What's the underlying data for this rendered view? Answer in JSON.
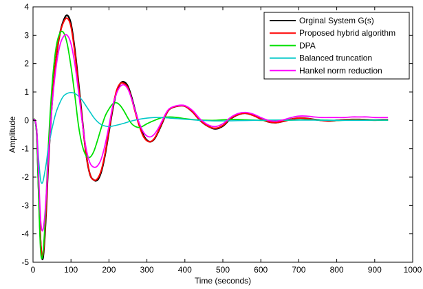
{
  "chart_data": {
    "type": "line",
    "title": "",
    "xlabel": "Time (seconds)",
    "ylabel": "Amplitude",
    "xlim": [
      0,
      1000
    ],
    "ylim": [
      -5,
      4
    ],
    "xticks": [
      0,
      100,
      200,
      300,
      400,
      500,
      600,
      700,
      800,
      900,
      1000
    ],
    "yticks": [
      -5,
      -4,
      -3,
      -2,
      -1,
      0,
      1,
      2,
      3,
      4
    ],
    "grid": false,
    "legend_position": "top-right",
    "series": [
      {
        "name": "Orginal System G(s)",
        "color": "#000000",
        "x": [
          0,
          5,
          10,
          15,
          20,
          25,
          30,
          35,
          40,
          50,
          60,
          70,
          80,
          90,
          100,
          110,
          120,
          130,
          140,
          150,
          160,
          170,
          180,
          190,
          200,
          210,
          220,
          230,
          240,
          250,
          260,
          270,
          280,
          290,
          300,
          310,
          320,
          330,
          340,
          350,
          360,
          380,
          400,
          420,
          440,
          460,
          480,
          500,
          520,
          540,
          560,
          580,
          600,
          620,
          640,
          660,
          680,
          700,
          720,
          740,
          760,
          780,
          800,
          820,
          840,
          860,
          880,
          900,
          920,
          935
        ],
        "y": [
          0,
          0,
          -0.5,
          -2.5,
          -4.3,
          -4.9,
          -4.3,
          -3.1,
          -1.6,
          0.6,
          2.1,
          3.0,
          3.5,
          3.7,
          3.4,
          2.5,
          1.3,
          0,
          -1.2,
          -1.9,
          -2.1,
          -2.1,
          -1.8,
          -1.2,
          -0.4,
          0.4,
          1.0,
          1.3,
          1.35,
          1.2,
          0.8,
          0.3,
          -0.15,
          -0.5,
          -0.7,
          -0.75,
          -0.65,
          -0.4,
          -0.1,
          0.2,
          0.4,
          0.5,
          0.5,
          0.3,
          0.0,
          -0.2,
          -0.3,
          -0.2,
          0.05,
          0.2,
          0.25,
          0.18,
          0.05,
          -0.05,
          -0.08,
          -0.03,
          0.04,
          0.08,
          0.07,
          0.03,
          0.0,
          -0.02,
          0.0,
          0.02,
          0.03,
          0.03,
          0.02,
          0.01,
          0.02,
          0.02
        ]
      },
      {
        "name": "Proposed hybrid algorithm",
        "color": "#ff0000",
        "x": [
          0,
          5,
          10,
          15,
          20,
          25,
          30,
          35,
          40,
          50,
          60,
          70,
          80,
          90,
          100,
          110,
          120,
          130,
          140,
          150,
          160,
          170,
          180,
          190,
          200,
          210,
          220,
          230,
          240,
          250,
          260,
          270,
          280,
          290,
          300,
          310,
          320,
          330,
          340,
          350,
          360,
          380,
          400,
          420,
          440,
          460,
          480,
          500,
          520,
          540,
          560,
          580,
          600,
          620,
          640,
          660,
          680,
          700,
          720,
          740,
          760,
          780,
          800,
          820,
          840,
          860,
          880,
          900,
          920,
          935
        ],
        "y": [
          0,
          0,
          -0.5,
          -2.4,
          -4.2,
          -4.8,
          -4.2,
          -3.0,
          -1.5,
          0.6,
          2.1,
          3.0,
          3.45,
          3.6,
          3.3,
          2.4,
          1.2,
          -0.05,
          -1.2,
          -1.9,
          -2.1,
          -2.05,
          -1.75,
          -1.15,
          -0.35,
          0.45,
          1.05,
          1.3,
          1.3,
          1.15,
          0.75,
          0.25,
          -0.2,
          -0.55,
          -0.72,
          -0.75,
          -0.63,
          -0.38,
          -0.08,
          0.2,
          0.4,
          0.5,
          0.5,
          0.3,
          0.0,
          -0.2,
          -0.28,
          -0.18,
          0.06,
          0.2,
          0.25,
          0.17,
          0.05,
          -0.05,
          -0.08,
          -0.03,
          0.04,
          0.08,
          0.07,
          0.03,
          0.0,
          -0.02,
          0.0,
          0.02,
          0.03,
          0.03,
          0.02,
          0.01,
          0.02,
          0.02
        ]
      },
      {
        "name": "DPA",
        "color": "#00e000",
        "x": [
          0,
          5,
          10,
          15,
          20,
          25,
          30,
          35,
          40,
          50,
          60,
          70,
          80,
          90,
          100,
          110,
          120,
          130,
          140,
          150,
          160,
          170,
          180,
          190,
          200,
          210,
          220,
          230,
          240,
          250,
          260,
          270,
          280,
          290,
          300,
          320,
          340,
          360,
          380,
          400,
          420,
          440,
          460,
          480,
          500,
          520,
          540,
          560,
          580,
          600,
          640,
          680,
          720,
          760,
          800,
          840,
          880,
          920,
          935
        ],
        "y": [
          0,
          0,
          -0.6,
          -2.8,
          -4.6,
          -4.8,
          -4.0,
          -2.6,
          -1.0,
          1.2,
          2.5,
          3.05,
          3.1,
          2.7,
          1.9,
          0.9,
          -0.2,
          -0.9,
          -1.25,
          -1.3,
          -1.1,
          -0.7,
          -0.25,
          0.15,
          0.4,
          0.58,
          0.62,
          0.52,
          0.32,
          0.08,
          -0.12,
          -0.22,
          -0.25,
          -0.2,
          -0.12,
          0.0,
          0.1,
          0.12,
          0.1,
          0.06,
          0.03,
          0.01,
          0.0,
          0.0,
          0.02,
          0.03,
          0.03,
          0.02,
          0.01,
          0.0,
          0.0,
          0.01,
          0.02,
          0.01,
          0.0,
          0.01,
          0.01,
          0.01,
          0.01
        ]
      },
      {
        "name": "Balanced truncation",
        "color": "#00c8c8",
        "x": [
          0,
          5,
          10,
          15,
          20,
          25,
          30,
          35,
          40,
          50,
          60,
          70,
          80,
          90,
          100,
          110,
          120,
          130,
          140,
          150,
          160,
          170,
          180,
          190,
          200,
          210,
          220,
          240,
          260,
          280,
          300,
          320,
          340,
          360,
          380,
          400,
          420,
          440,
          460,
          480,
          500,
          540,
          580,
          620,
          660,
          700,
          740,
          780,
          820,
          860,
          900,
          935
        ],
        "y": [
          0,
          0,
          -0.4,
          -1.4,
          -2.1,
          -2.2,
          -1.9,
          -1.5,
          -1.0,
          -0.3,
          0.25,
          0.6,
          0.85,
          0.95,
          0.98,
          0.95,
          0.85,
          0.7,
          0.5,
          0.3,
          0.1,
          -0.05,
          -0.15,
          -0.2,
          -0.22,
          -0.2,
          -0.17,
          -0.1,
          -0.02,
          0.04,
          0.08,
          0.1,
          0.1,
          0.08,
          0.06,
          0.04,
          0.02,
          0.0,
          -0.01,
          -0.02,
          -0.02,
          -0.01,
          0.0,
          0.01,
          0.01,
          0.01,
          0.01,
          0.0,
          0.0,
          0.0,
          0.01,
          0.01
        ]
      },
      {
        "name": "Hankel norm reduction",
        "color": "#ff00ff",
        "x": [
          0,
          5,
          10,
          15,
          20,
          25,
          30,
          35,
          40,
          50,
          60,
          70,
          80,
          90,
          100,
          110,
          120,
          130,
          140,
          150,
          160,
          170,
          180,
          190,
          200,
          210,
          220,
          230,
          240,
          250,
          260,
          270,
          280,
          290,
          300,
          310,
          320,
          330,
          340,
          350,
          360,
          380,
          400,
          420,
          440,
          460,
          480,
          500,
          520,
          540,
          560,
          580,
          600,
          620,
          640,
          660,
          680,
          700,
          720,
          740,
          760,
          780,
          800,
          820,
          840,
          860,
          880,
          900,
          920,
          935
        ],
        "y": [
          0,
          0,
          -0.4,
          -2.0,
          -3.5,
          -3.9,
          -3.5,
          -2.6,
          -1.4,
          0.5,
          1.8,
          2.6,
          2.95,
          3.0,
          2.7,
          2.0,
          1.0,
          -0.1,
          -1.0,
          -1.5,
          -1.65,
          -1.6,
          -1.35,
          -0.85,
          -0.2,
          0.5,
          0.95,
          1.2,
          1.25,
          1.1,
          0.75,
          0.3,
          -0.1,
          -0.4,
          -0.55,
          -0.58,
          -0.48,
          -0.28,
          -0.02,
          0.25,
          0.42,
          0.52,
          0.52,
          0.35,
          0.05,
          -0.15,
          -0.22,
          -0.12,
          0.1,
          0.24,
          0.28,
          0.22,
          0.1,
          0.0,
          -0.03,
          0.02,
          0.1,
          0.15,
          0.15,
          0.12,
          0.1,
          0.1,
          0.1,
          0.1,
          0.12,
          0.12,
          0.12,
          0.1,
          0.1,
          0.1
        ]
      }
    ]
  }
}
